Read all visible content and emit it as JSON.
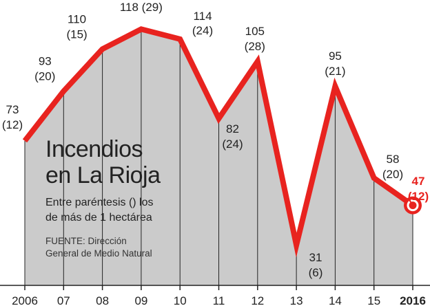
{
  "chart_data": {
    "type": "area",
    "title": "Incendios en La Rioja",
    "title_lines": [
      "Incendios",
      "en La Rioja"
    ],
    "subtitle_lines": [
      "Entre paréntesis () los",
      "de más de 1 hectárea"
    ],
    "source_lines": [
      "FUENTE: Dirección",
      "General de Medio Natural"
    ],
    "categories": [
      "2006",
      "07",
      "08",
      "09",
      "10",
      "11",
      "12",
      "13",
      "14",
      "15",
      "2016"
    ],
    "series": [
      {
        "values": [
          73,
          93,
          110,
          118,
          114,
          82,
          105,
          31,
          95,
          58,
          47
        ]
      }
    ],
    "secondary_values": [
      12,
      20,
      15,
      29,
      24,
      24,
      28,
      6,
      21,
      20,
      12
    ],
    "value_labels": [
      "73",
      "93",
      "110",
      "118",
      "114",
      "82",
      "105",
      "31",
      "95",
      "58",
      "47"
    ],
    "secondary_labels": [
      "(12)",
      "(20)",
      "(15)",
      "(29)",
      "(24)",
      "(24)",
      "(28)",
      "(6)",
      "(21)",
      "(20)",
      "(12)"
    ],
    "highlight_index": 10,
    "ylim": [
      25,
      122
    ],
    "grid": false,
    "xlabel": "",
    "ylabel": "",
    "colors": {
      "line": "#e8231f",
      "fill": "#cbcbcb",
      "highlight_text": "#e8231f",
      "axis": "#222222",
      "text": "#222222"
    }
  }
}
